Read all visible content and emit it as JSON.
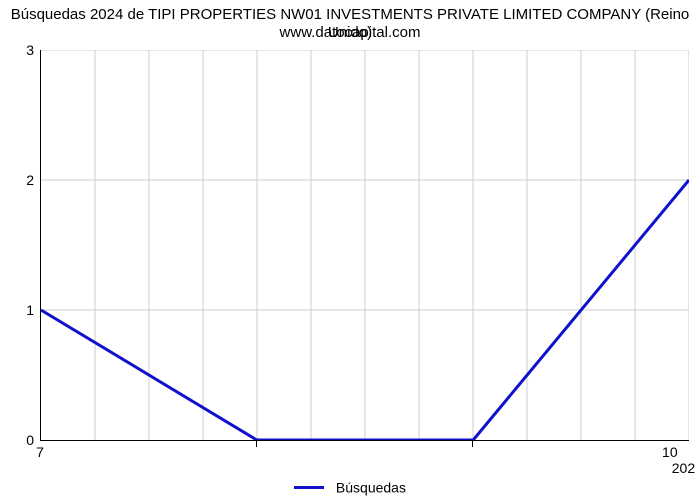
{
  "chart": {
    "type": "line",
    "title_line1": "Búsquedas 2024 de TIPI PROPERTIES NW01 INVESTMENTS PRIVATE LIMITED COMPANY (Reino Unido)",
    "title_line2": "www.datocapital.com",
    "title_fontsize": 15,
    "background_color": "#ffffff",
    "grid_color": "#cccccc",
    "axis_color": "#000000",
    "ylim": [
      0,
      3
    ],
    "yticks": [
      0,
      1,
      2,
      3
    ],
    "n_vgrids": 12,
    "xtick_labels": [
      "7",
      "10"
    ],
    "xtick_positions": [
      0.0,
      0.972
    ],
    "xtick2_label": "202",
    "xtick2_position": 0.993,
    "xtick_mark_positions": [
      0.333,
      0.667
    ],
    "series": {
      "label": "Búsquedas",
      "color": "#1011cc",
      "line_width": 3,
      "points_xfrac": [
        0.0,
        0.333,
        0.667,
        1.0
      ],
      "points_y": [
        1.0,
        0.0,
        0.0,
        2.0
      ]
    },
    "legend_position": "bottom-center",
    "label_fontsize": 14
  }
}
